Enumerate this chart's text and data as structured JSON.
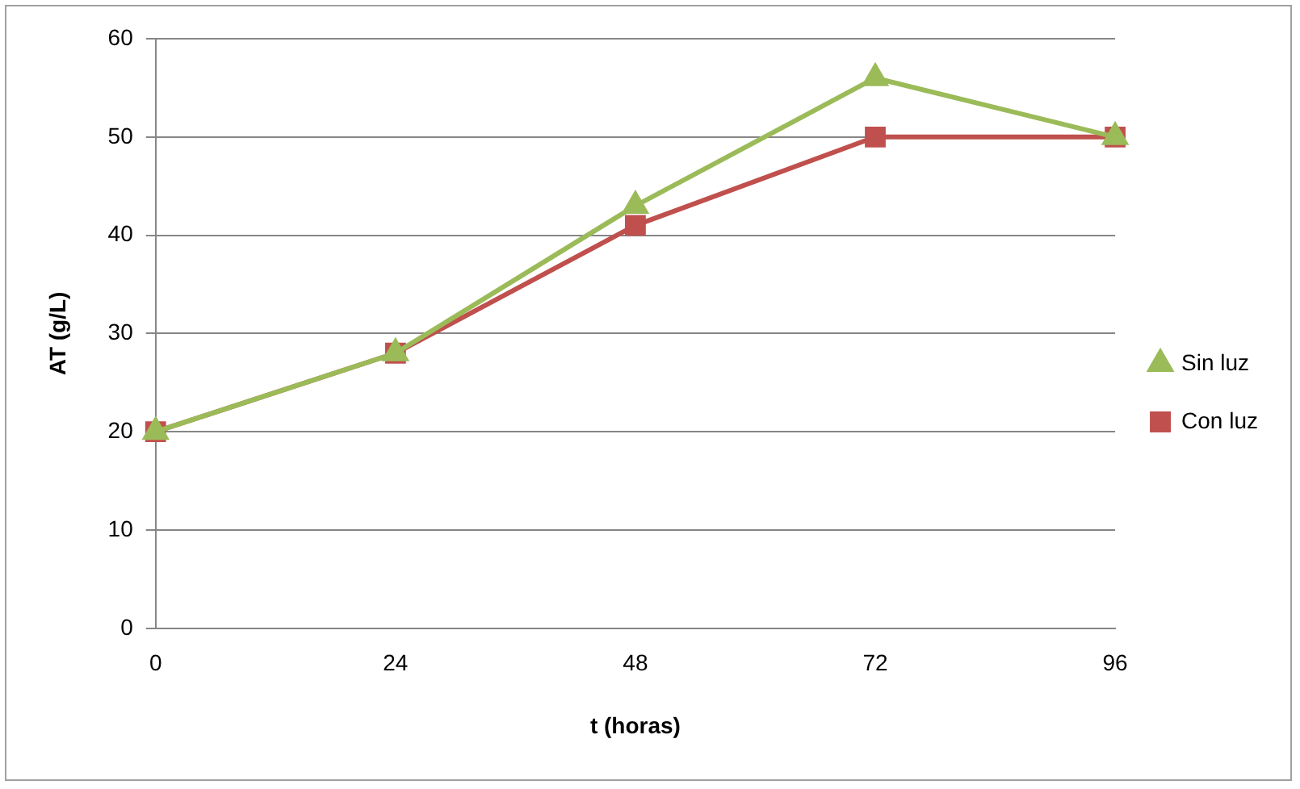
{
  "chart_data": {
    "type": "line",
    "xlabel": "t (horas)",
    "ylabel": "AT (g/L)",
    "categories": [
      "0",
      "24",
      "48",
      "72",
      "96"
    ],
    "series": [
      {
        "name": "Con luz",
        "color": "#c0504d",
        "marker": "square",
        "values": [
          20,
          28,
          41,
          50,
          50
        ]
      },
      {
        "name": "Sin luz",
        "color": "#9bbb59",
        "marker": "triangle",
        "values": [
          20,
          28,
          43,
          56,
          50
        ]
      }
    ],
    "ylim": [
      0,
      60
    ],
    "yticks": [
      0,
      10,
      20,
      30,
      40,
      50,
      60
    ],
    "grid": "y",
    "legend": "right"
  }
}
